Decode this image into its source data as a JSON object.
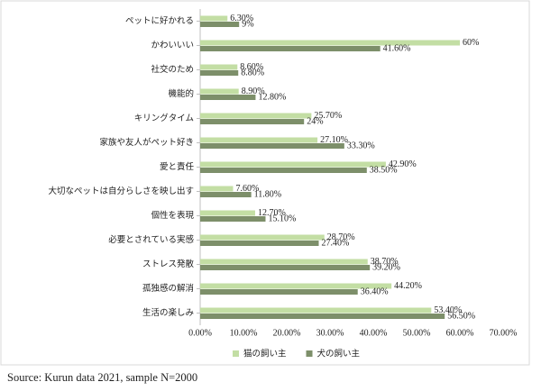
{
  "chart_data": {
    "type": "hbar",
    "categories": [
      "ペットに好かれる",
      "かわいいい",
      "社交のため",
      "機能的",
      "キリングタイム",
      "家族や友人がペット好き",
      "愛と責任",
      "大切なペットは自分らしさを映し出す",
      "個性を表現",
      "必要とされている実感",
      "ストレス発散",
      "孤独感の解消",
      "生活の楽しみ"
    ],
    "series": [
      {
        "name": "猫の飼い主",
        "color": "#c3dea4",
        "values": [
          6.3,
          60,
          8.6,
          8.9,
          25.7,
          27.1,
          42.9,
          7.6,
          12.7,
          28.7,
          38.7,
          44.2,
          53.4
        ],
        "value_labels": [
          "6.30%",
          "60%",
          "8.60%",
          "8.90%",
          "25.70%",
          "27.10%",
          "42.90%",
          "7.60%",
          "12.70%",
          "28.70%",
          "38.70%",
          "44.20%",
          "53.40%"
        ]
      },
      {
        "name": "犬の飼い主",
        "color": "#7d8f6a",
        "values": [
          9,
          41.6,
          8.8,
          12.8,
          24,
          33.3,
          38.5,
          11.8,
          15.1,
          27.4,
          39.2,
          36.4,
          56.5
        ],
        "value_labels": [
          "9%",
          "41.60%",
          "8.80%",
          "12.80%",
          "24%",
          "33.30%",
          "38.50%",
          "11.80%",
          "15.10%",
          "27.40%",
          "39.20%",
          "36.40%",
          "56.50%"
        ]
      }
    ],
    "xlim": [
      0,
      70
    ],
    "xticks": [
      {
        "value": 0,
        "label": "0.00%"
      },
      {
        "value": 10,
        "label": "10.00%"
      },
      {
        "value": 20,
        "label": "20.00%"
      },
      {
        "value": 30,
        "label": "30.00%"
      },
      {
        "value": 40,
        "label": "40.00%"
      },
      {
        "value": 50,
        "label": "50.00%"
      },
      {
        "value": 60,
        "label": "60.00%"
      },
      {
        "value": 70,
        "label": "70.00%"
      }
    ],
    "legend": "bottom",
    "source": "Source: Kurun data 2021, sample N=2000"
  }
}
